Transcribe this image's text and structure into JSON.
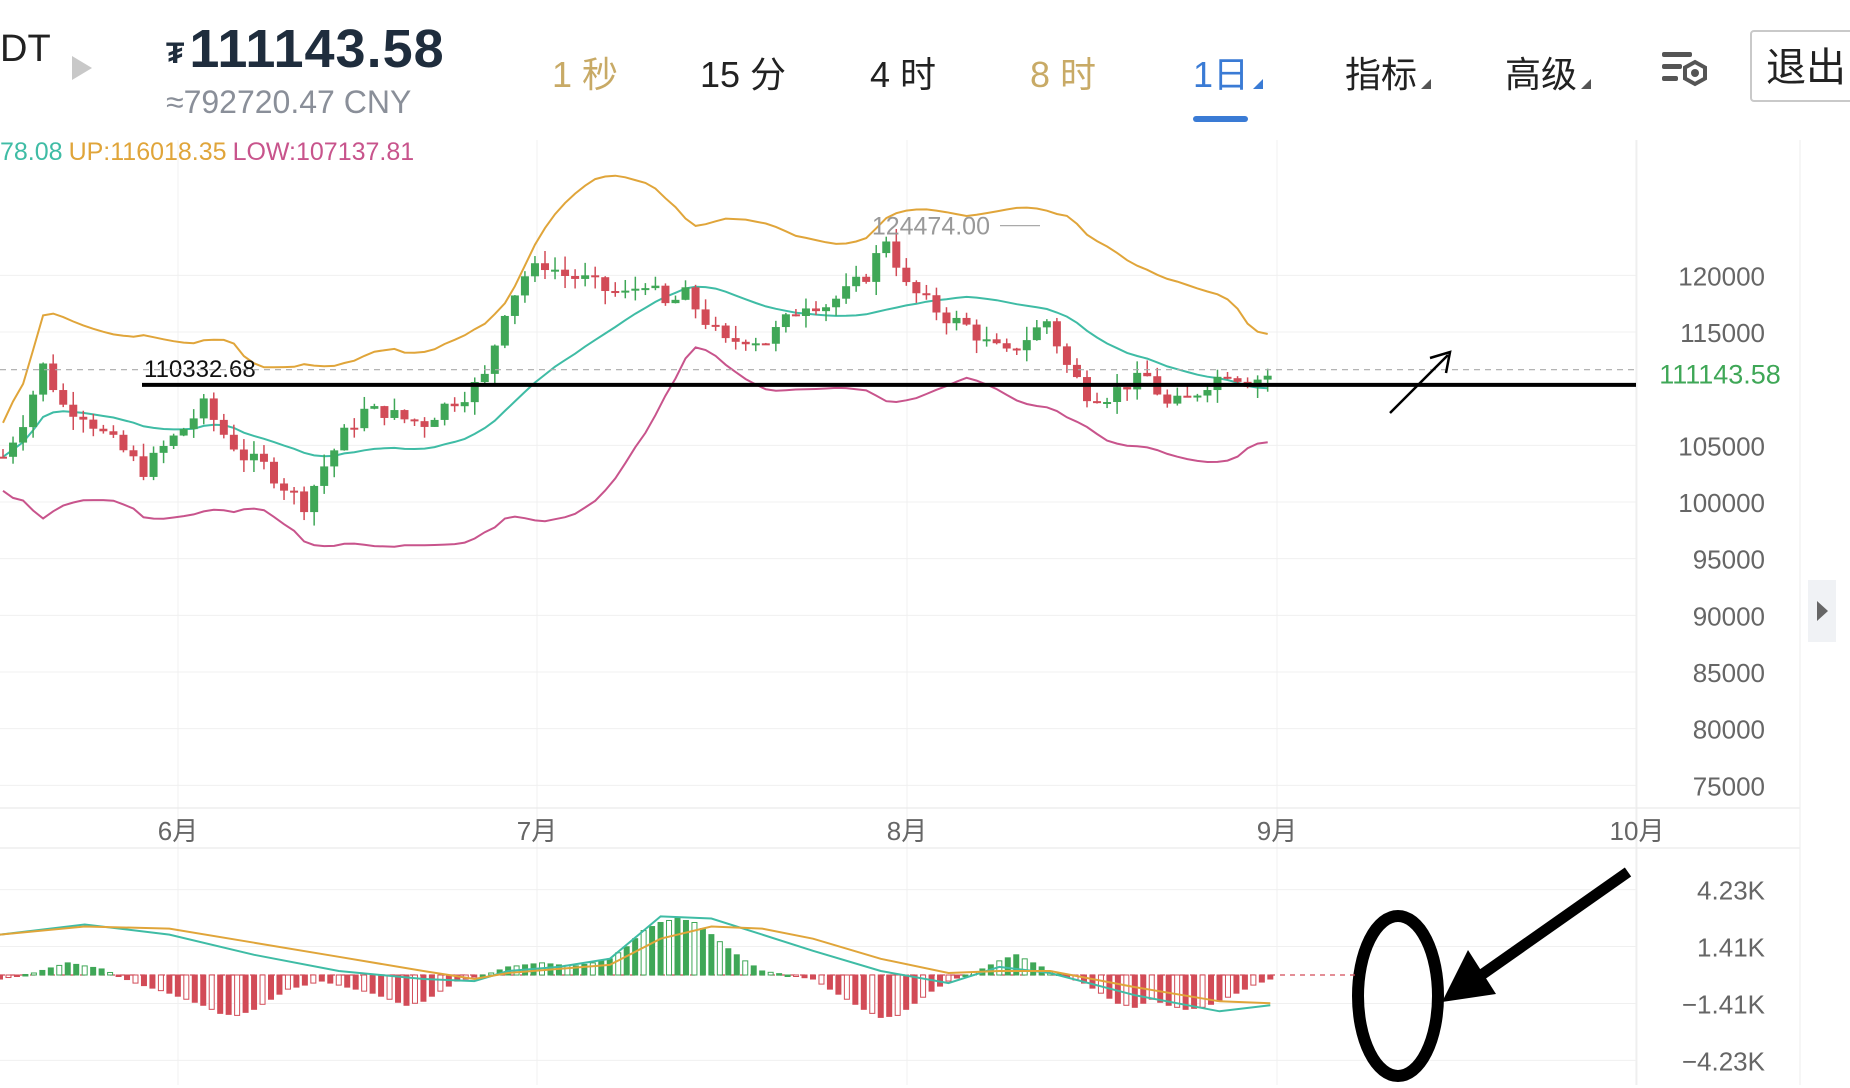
{
  "header": {
    "symbol_fragment": "DT",
    "currency_glyph": "₮",
    "last_price": "111143.58",
    "cny_price": "≈792720.47 CNY"
  },
  "tabs": [
    {
      "label": "1 秒",
      "state": "dim"
    },
    {
      "label": "15 分",
      "state": "normal"
    },
    {
      "label": "4 时",
      "state": "normal"
    },
    {
      "label": "8 时",
      "state": "dim"
    },
    {
      "label": "1日",
      "state": "active"
    },
    {
      "label": "指标",
      "state": "dropdown"
    },
    {
      "label": "高级",
      "state": "dropdown"
    }
  ],
  "exit_label": "退出",
  "legend": {
    "mid": "78.08",
    "up": "UP:116018.35",
    "low": "LOW:107137.81"
  },
  "colors": {
    "up_candle": "#3fa757",
    "down_candle": "#d24b57",
    "mid_band": "#3fbca5",
    "upper_band": "#e0a53a",
    "lower_band": "#c8548c",
    "accent": "#3a7bd5"
  },
  "annotations": {
    "support_label": "110332.68",
    "high_label": "124474.00",
    "current_price_tag": "111143.58"
  },
  "chart_data": [
    {
      "type": "candlestick",
      "title": "",
      "x_ticks": [
        "6月",
        "7月",
        "8月",
        "9月",
        "10月"
      ],
      "y_ticks": [
        "120000",
        "115000",
        "105000",
        "100000",
        "95000",
        "90000",
        "85000",
        "80000",
        "75000"
      ],
      "ylim": [
        73000,
        131500
      ],
      "last_price": 111143.58,
      "support_line": 110332.68,
      "period_high": 124474.0,
      "grid": true,
      "series": [
        {
          "name": "UP",
          "last": 116018.35
        },
        {
          "name": "LOW",
          "last": 107137.81
        }
      ],
      "close_path": [
        [
          0,
          104000
        ],
        [
          2,
          107200
        ],
        [
          4,
          112000
        ],
        [
          6,
          108500
        ],
        [
          8,
          107800
        ],
        [
          10,
          106000
        ],
        [
          12,
          104500
        ],
        [
          14,
          102800
        ],
        [
          16,
          104800
        ],
        [
          18,
          106500
        ],
        [
          20,
          108500
        ],
        [
          22,
          106000
        ],
        [
          24,
          104000
        ],
        [
          26,
          103200
        ],
        [
          28,
          101400
        ],
        [
          30,
          99800
        ],
        [
          32,
          103200
        ],
        [
          34,
          106000
        ],
        [
          36,
          108000
        ],
        [
          38,
          108000
        ],
        [
          40,
          107300
        ],
        [
          42,
          107000
        ],
        [
          44,
          108500
        ],
        [
          46,
          109500
        ],
        [
          48,
          111000
        ],
        [
          50,
          117000
        ],
        [
          52,
          120000
        ],
        [
          54,
          121000
        ],
        [
          56,
          120000
        ],
        [
          58,
          119600
        ],
        [
          60,
          118700
        ],
        [
          62,
          118300
        ],
        [
          64,
          119500
        ],
        [
          66,
          117300
        ],
        [
          68,
          118300
        ],
        [
          70,
          116000
        ],
        [
          72,
          114000
        ],
        [
          74,
          114500
        ],
        [
          76,
          114200
        ],
        [
          78,
          116000
        ],
        [
          80,
          117600
        ],
        [
          82,
          117400
        ],
        [
          84,
          118500
        ],
        [
          86,
          120000
        ],
        [
          88,
          123300
        ],
        [
          90,
          119000
        ],
        [
          92,
          117600
        ],
        [
          94,
          116300
        ],
        [
          96,
          115500
        ],
        [
          98,
          114000
        ],
        [
          100,
          113000
        ],
        [
          102,
          114500
        ],
        [
          104,
          116000
        ],
        [
          106,
          112000
        ],
        [
          108,
          109600
        ],
        [
          110,
          109400
        ],
        [
          112,
          110400
        ],
        [
          114,
          111000
        ],
        [
          116,
          108500
        ],
        [
          118,
          109000
        ],
        [
          120,
          110500
        ],
        [
          122,
          111500
        ],
        [
          124,
          110700
        ],
        [
          126,
          111143.58
        ]
      ]
    },
    {
      "type": "bar",
      "title": "",
      "y_ticks": [
        "4.23K",
        "1.41K",
        "−1.41K",
        "−4.23K"
      ],
      "ylim": [
        -5200,
        5200
      ],
      "histogram": [
        [
          0,
          -200
        ],
        [
          4,
          100
        ],
        [
          8,
          600
        ],
        [
          12,
          300
        ],
        [
          16,
          -400
        ],
        [
          20,
          -900
        ],
        [
          24,
          -1500
        ],
        [
          26,
          -1900
        ],
        [
          28,
          -2000
        ],
        [
          30,
          -1700
        ],
        [
          32,
          -1200
        ],
        [
          34,
          -700
        ],
        [
          38,
          -300
        ],
        [
          40,
          -500
        ],
        [
          42,
          -700
        ],
        [
          44,
          -900
        ],
        [
          46,
          -1200
        ],
        [
          48,
          -1500
        ],
        [
          50,
          -1300
        ],
        [
          52,
          -800
        ],
        [
          54,
          -300
        ],
        [
          58,
          100
        ],
        [
          60,
          400
        ],
        [
          62,
          500
        ],
        [
          64,
          600
        ],
        [
          66,
          500
        ],
        [
          68,
          450
        ],
        [
          70,
          600
        ],
        [
          72,
          800
        ],
        [
          74,
          1400
        ],
        [
          76,
          2200
        ],
        [
          78,
          2600
        ],
        [
          80,
          2800
        ],
        [
          82,
          2600
        ],
        [
          84,
          2000
        ],
        [
          86,
          1300
        ],
        [
          88,
          700
        ],
        [
          90,
          200
        ],
        [
          96,
          -200
        ],
        [
          98,
          -700
        ],
        [
          100,
          -1200
        ],
        [
          102,
          -1700
        ],
        [
          104,
          -2100
        ],
        [
          106,
          -2000
        ],
        [
          108,
          -1400
        ],
        [
          110,
          -800
        ],
        [
          112,
          -300
        ],
        [
          116,
          300
        ],
        [
          118,
          700
        ],
        [
          120,
          1000
        ],
        [
          122,
          600
        ],
        [
          124,
          200
        ],
        [
          128,
          -400
        ],
        [
          130,
          -900
        ],
        [
          132,
          -1400
        ],
        [
          134,
          -1600
        ],
        [
          136,
          -1200
        ],
        [
          138,
          -1500
        ],
        [
          140,
          -1700
        ],
        [
          142,
          -1600
        ],
        [
          144,
          -1300
        ],
        [
          146,
          -900
        ],
        [
          148,
          -500
        ],
        [
          150,
          -200
        ]
      ],
      "line_a": [
        [
          0,
          2000
        ],
        [
          10,
          2500
        ],
        [
          20,
          2000
        ],
        [
          30,
          1000
        ],
        [
          40,
          200
        ],
        [
          50,
          -200
        ],
        [
          56,
          -300
        ],
        [
          60,
          200
        ],
        [
          66,
          400
        ],
        [
          72,
          800
        ],
        [
          78,
          2900
        ],
        [
          84,
          2800
        ],
        [
          90,
          2000
        ],
        [
          96,
          1200
        ],
        [
          104,
          200
        ],
        [
          112,
          -400
        ],
        [
          118,
          400
        ],
        [
          124,
          100
        ],
        [
          134,
          -1000
        ],
        [
          144,
          -1800
        ],
        [
          150,
          -1500
        ]
      ],
      "line_b": [
        [
          0,
          2000
        ],
        [
          10,
          2400
        ],
        [
          20,
          2300
        ],
        [
          30,
          1600
        ],
        [
          40,
          900
        ],
        [
          50,
          200
        ],
        [
          56,
          -200
        ],
        [
          60,
          100
        ],
        [
          66,
          300
        ],
        [
          72,
          500
        ],
        [
          78,
          1800
        ],
        [
          84,
          2400
        ],
        [
          90,
          2300
        ],
        [
          96,
          1800
        ],
        [
          104,
          800
        ],
        [
          112,
          100
        ],
        [
          118,
          200
        ],
        [
          124,
          200
        ],
        [
          134,
          -600
        ],
        [
          144,
          -1300
        ],
        [
          150,
          -1400
        ]
      ]
    }
  ]
}
